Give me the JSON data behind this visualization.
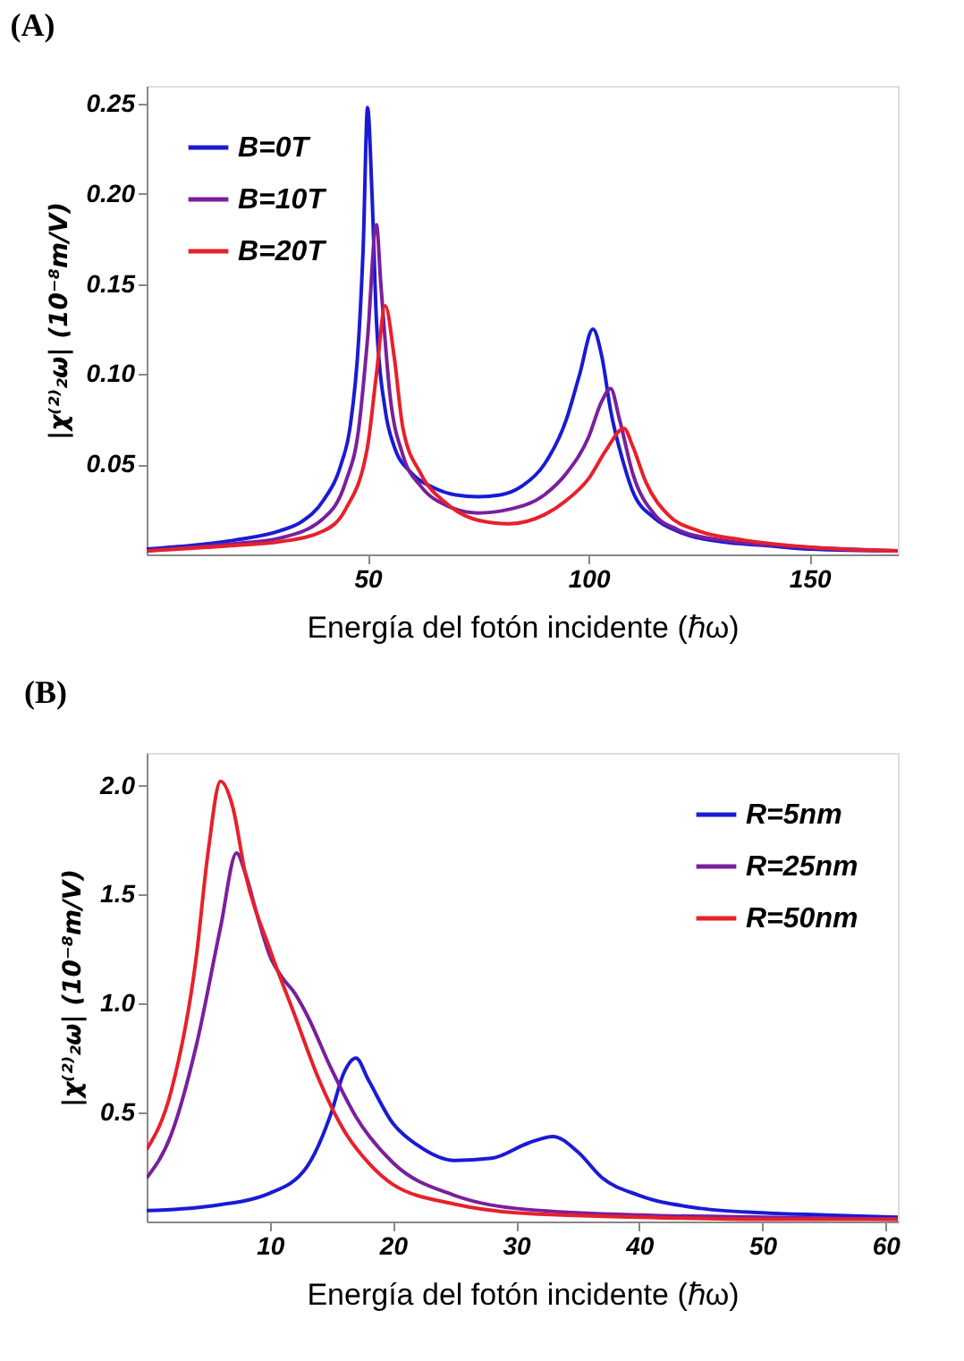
{
  "chart_data": [
    {
      "type": "line",
      "title": "(A)",
      "xlabel": "Energía del fotón incidente (ℏω)",
      "ylabel": "|χ⁽²⁾₂ω| (10⁻⁸m/V)",
      "xlim": [
        0,
        170
      ],
      "ylim": [
        0,
        0.26
      ],
      "xticks": [
        50,
        100,
        150
      ],
      "yticks": [
        0.05,
        {
          "value": 0.1,
          "label": "0.10"
        },
        0.15,
        {
          "value": 0.2,
          "label": "0.20"
        },
        0.25
      ],
      "grid": false,
      "legend": "top left",
      "series": [
        {
          "name": "B=0T",
          "color": "#1a1ad6",
          "x": [
            0,
            10,
            20,
            30,
            35,
            40,
            44,
            46,
            48,
            49,
            50,
            51,
            52,
            54,
            56,
            60,
            65,
            70,
            75,
            80,
            85,
            90,
            95,
            98,
            101,
            103,
            105,
            108,
            110,
            115,
            120,
            130,
            140,
            150,
            170
          ],
          "values": [
            0.003,
            0.005,
            0.008,
            0.013,
            0.018,
            0.03,
            0.05,
            0.07,
            0.12,
            0.17,
            0.248,
            0.2,
            0.13,
            0.08,
            0.06,
            0.045,
            0.037,
            0.033,
            0.032,
            0.033,
            0.038,
            0.05,
            0.075,
            0.1,
            0.125,
            0.11,
            0.08,
            0.05,
            0.035,
            0.02,
            0.013,
            0.007,
            0.005,
            0.003,
            0.002
          ]
        },
        {
          "name": "B=10T",
          "color": "#7a1f9c",
          "x": [
            0,
            10,
            20,
            30,
            40,
            45,
            48,
            50,
            52,
            53,
            55,
            58,
            62,
            68,
            75,
            82,
            90,
            95,
            100,
            103,
            105,
            107,
            110,
            115,
            120,
            130,
            150,
            170
          ],
          "values": [
            0.002,
            0.004,
            0.006,
            0.009,
            0.02,
            0.04,
            0.07,
            0.12,
            0.183,
            0.15,
            0.09,
            0.055,
            0.038,
            0.027,
            0.023,
            0.025,
            0.033,
            0.045,
            0.065,
            0.085,
            0.092,
            0.075,
            0.045,
            0.022,
            0.014,
            0.008,
            0.004,
            0.002
          ]
        },
        {
          "name": "B=20T",
          "color": "#e8202a",
          "x": [
            0,
            20,
            30,
            40,
            45,
            50,
            52,
            54,
            56,
            58,
            62,
            68,
            75,
            82,
            90,
            95,
            100,
            104,
            108,
            110,
            113,
            118,
            125,
            135,
            150,
            170
          ],
          "values": [
            0.002,
            0.005,
            0.007,
            0.013,
            0.025,
            0.06,
            0.1,
            0.138,
            0.11,
            0.07,
            0.045,
            0.028,
            0.019,
            0.017,
            0.022,
            0.03,
            0.042,
            0.058,
            0.07,
            0.06,
            0.04,
            0.022,
            0.013,
            0.008,
            0.004,
            0.002
          ]
        }
      ]
    },
    {
      "type": "line",
      "title": "(B)",
      "xlabel": "Energía del fotón incidente (ℏω)",
      "ylabel": "|χ⁽²⁾₂ω| (10⁻⁸m/V)",
      "xlim": [
        0,
        61
      ],
      "ylim": [
        0,
        2.15
      ],
      "xticks": [
        10,
        20,
        30,
        40,
        50,
        60
      ],
      "yticks": [
        0.5,
        {
          "value": 1,
          "label": "1.0"
        },
        1.5,
        {
          "value": 2,
          "label": "2.0"
        }
      ],
      "grid": false,
      "legend": "top right",
      "series": [
        {
          "name": "R=5nm",
          "color": "#1a1ad6",
          "x": [
            0,
            5,
            10,
            13,
            15,
            16,
            17,
            18,
            20,
            22,
            25,
            28,
            31,
            33,
            35,
            37,
            40,
            45,
            50,
            55,
            61
          ],
          "values": [
            0.05,
            0.07,
            0.13,
            0.25,
            0.5,
            0.68,
            0.75,
            0.65,
            0.45,
            0.35,
            0.28,
            0.29,
            0.36,
            0.39,
            0.32,
            0.2,
            0.12,
            0.06,
            0.04,
            0.03,
            0.02
          ]
        },
        {
          "name": "R=25nm",
          "color": "#7a1f9c",
          "x": [
            0,
            2,
            4,
            6,
            7.3,
            8,
            9,
            10,
            11,
            12,
            13,
            15,
            17,
            20,
            25,
            30,
            40,
            50,
            61
          ],
          "values": [
            0.2,
            0.4,
            0.8,
            1.35,
            1.69,
            1.6,
            1.4,
            1.22,
            1.12,
            1.05,
            0.95,
            0.7,
            0.48,
            0.27,
            0.12,
            0.06,
            0.03,
            0.02,
            0.01
          ]
        },
        {
          "name": "R=50nm",
          "color": "#e8202a",
          "x": [
            0,
            2,
            4,
            5,
            6,
            7,
            8,
            10,
            12,
            14,
            16,
            18,
            20,
            25,
            30,
            40,
            50,
            61
          ],
          "values": [
            0.33,
            0.6,
            1.2,
            1.7,
            2.02,
            1.9,
            1.6,
            1.25,
            0.95,
            0.65,
            0.42,
            0.27,
            0.17,
            0.08,
            0.04,
            0.02,
            0.01,
            0.01
          ]
        }
      ]
    }
  ]
}
